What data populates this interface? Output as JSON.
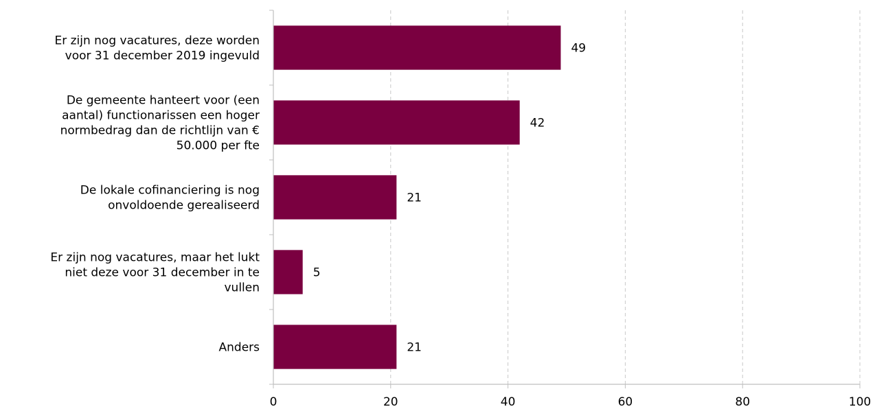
{
  "chart_data": {
    "type": "bar",
    "orientation": "horizontal",
    "categories": [
      [
        "Er zijn nog vacatures, deze worden",
        "voor 31 december 2019 ingevuld"
      ],
      [
        "De gemeente hanteert voor (een",
        "aantal) functionarissen een hoger",
        "normbedrag dan de richtlijn van €",
        "50.000 per fte"
      ],
      [
        "De lokale cofinanciering is nog",
        "onvoldoende gerealiseerd"
      ],
      [
        "Er zijn nog vacatures, maar het lukt",
        "niet deze voor 31 december in te",
        "vullen"
      ],
      [
        "Anders"
      ]
    ],
    "values": [
      49,
      42,
      21,
      5,
      21
    ],
    "data_labels": [
      "49",
      "42",
      "21",
      "5",
      "21"
    ],
    "xlim": [
      0,
      100
    ],
    "x_ticks": [
      0,
      20,
      40,
      60,
      80,
      100
    ],
    "x_tick_labels": [
      "0",
      "20",
      "40",
      "60",
      "80",
      "100"
    ],
    "grid": "vertical dashed",
    "bar_color": "#7a0040",
    "grid_color": "#c8c8c8",
    "axis_color": "#bfbfbf"
  }
}
